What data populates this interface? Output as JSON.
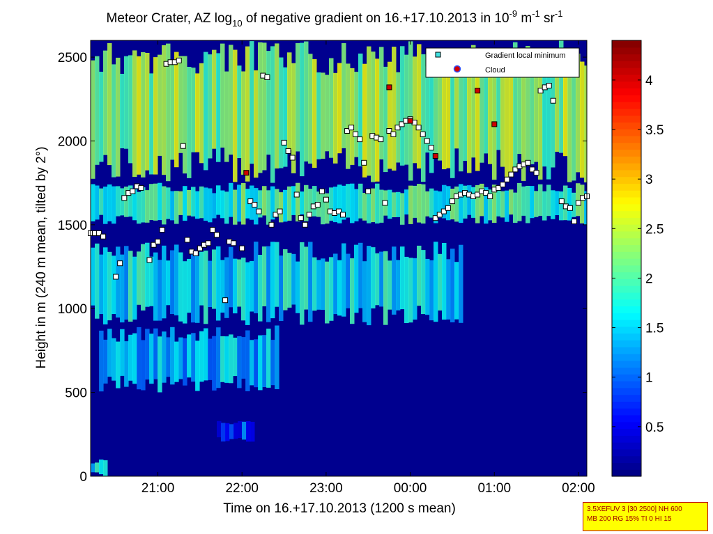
{
  "title": {
    "prefix": "Meteor Crater, AZ log",
    "sub": "10",
    "middle": " of negative gradient on 16.+17.10.2013 in 10",
    "sup1": "-9",
    "unit1": " m",
    "sup2": "-1",
    "unit2": " sr",
    "sup3": "-1"
  },
  "xlabel": "Time on 16.+17.10.2013 (1200 s mean)",
  "ylabel": "Height in m (240 m mean, tilted by 2°)",
  "info_box": [
    "3.5XEFUV 3 [30 2500] NH 600",
    "MB 200 RG 15% TI 0 HI 15"
  ],
  "legend": {
    "placement": "top-right",
    "items": [
      {
        "label": "Gradient local minimum",
        "color": "#40e0e0"
      },
      {
        "label": "Cloud",
        "color": "#d00000"
      }
    ]
  },
  "colors": {
    "background_plot": "#00008f",
    "cloud": "#d00000",
    "minimum_fill": "#ffffff"
  },
  "chart_data": {
    "type": "heatmap",
    "colormap": "jet",
    "x": {
      "min_hours": 20.2,
      "max_hours": 26.1,
      "ticks": [
        {
          "v": 21,
          "label": "21:00"
        },
        {
          "v": 22,
          "label": "22:00"
        },
        {
          "v": 23,
          "label": "23:00"
        },
        {
          "v": 24,
          "label": "00:00"
        },
        {
          "v": 25,
          "label": "01:00"
        },
        {
          "v": 26,
          "label": "02:00"
        }
      ]
    },
    "y": {
      "min": 0,
      "max": 2600,
      "ticks": [
        0,
        500,
        1000,
        1500,
        2000,
        2500
      ]
    },
    "colorbar": {
      "min": 0,
      "max": 4.4,
      "ticks": [
        0.5,
        1,
        1.5,
        2,
        2.5,
        3,
        3.5,
        4
      ]
    },
    "layers": [
      {
        "name": "upper-band",
        "x0": 20.2,
        "x1": 26.1,
        "y0": 1750,
        "y1": 2600,
        "level": 2.3
      },
      {
        "name": "mid-band",
        "x0": 20.2,
        "x1": 26.1,
        "y0": 1500,
        "y1": 1750,
        "level": 1.9
      },
      {
        "name": "lower-band",
        "x0": 20.2,
        "x1": 24.6,
        "y0": 900,
        "y1": 1400,
        "level": 1.6
      },
      {
        "name": "low-patch",
        "x0": 20.3,
        "x1": 22.4,
        "y0": 500,
        "y1": 900,
        "level": 1.4
      },
      {
        "name": "ground-patch",
        "x0": 21.7,
        "x1": 22.1,
        "y0": 200,
        "y1": 330,
        "level": 0.8
      },
      {
        "name": "corner-patch",
        "x0": 20.2,
        "x1": 20.35,
        "y0": 0,
        "y1": 100,
        "level": 1.5
      }
    ],
    "local_minimum": [
      [
        20.2,
        1450
      ],
      [
        20.25,
        1450
      ],
      [
        20.3,
        1450
      ],
      [
        20.35,
        1430
      ],
      [
        20.5,
        1190
      ],
      [
        20.55,
        1270
      ],
      [
        20.6,
        1660
      ],
      [
        20.65,
        1690
      ],
      [
        20.7,
        1700
      ],
      [
        20.75,
        1730
      ],
      [
        20.8,
        1720
      ],
      [
        20.9,
        1290
      ],
      [
        20.95,
        1380
      ],
      [
        21.0,
        1400
      ],
      [
        21.05,
        1470
      ],
      [
        21.1,
        2460
      ],
      [
        21.15,
        2470
      ],
      [
        21.2,
        2470
      ],
      [
        21.25,
        2480
      ],
      [
        21.3,
        1970
      ],
      [
        21.35,
        1410
      ],
      [
        21.4,
        1340
      ],
      [
        21.45,
        1330
      ],
      [
        21.5,
        1360
      ],
      [
        21.55,
        1380
      ],
      [
        21.6,
        1390
      ],
      [
        21.65,
        1470
      ],
      [
        21.7,
        1440
      ],
      [
        21.8,
        1050
      ],
      [
        21.85,
        1400
      ],
      [
        21.9,
        1390
      ],
      [
        22.0,
        1360
      ],
      [
        22.1,
        1640
      ],
      [
        22.15,
        1620
      ],
      [
        22.2,
        1580
      ],
      [
        22.25,
        2390
      ],
      [
        22.3,
        2380
      ],
      [
        22.35,
        1500
      ],
      [
        22.4,
        1560
      ],
      [
        22.45,
        1580
      ],
      [
        22.5,
        1990
      ],
      [
        22.55,
        1940
      ],
      [
        22.6,
        1900
      ],
      [
        22.65,
        1680
      ],
      [
        22.7,
        1540
      ],
      [
        22.75,
        1500
      ],
      [
        22.8,
        1560
      ],
      [
        22.85,
        1610
      ],
      [
        22.9,
        1620
      ],
      [
        22.95,
        1700
      ],
      [
        23.0,
        1650
      ],
      [
        23.05,
        1580
      ],
      [
        23.1,
        1570
      ],
      [
        23.15,
        1580
      ],
      [
        23.2,
        1560
      ],
      [
        23.25,
        2060
      ],
      [
        23.3,
        2080
      ],
      [
        23.35,
        2040
      ],
      [
        23.4,
        2010
      ],
      [
        23.45,
        1870
      ],
      [
        23.5,
        1700
      ],
      [
        23.55,
        2030
      ],
      [
        23.6,
        2020
      ],
      [
        23.65,
        2010
      ],
      [
        23.7,
        1630
      ],
      [
        23.75,
        2060
      ],
      [
        23.8,
        2040
      ],
      [
        23.85,
        2080
      ],
      [
        23.9,
        2100
      ],
      [
        23.95,
        2120
      ],
      [
        24.0,
        2130
      ],
      [
        24.05,
        2110
      ],
      [
        24.1,
        2080
      ],
      [
        24.15,
        2040
      ],
      [
        24.2,
        2000
      ],
      [
        24.25,
        1960
      ],
      [
        24.3,
        1540
      ],
      [
        24.35,
        1560
      ],
      [
        24.4,
        1580
      ],
      [
        24.45,
        1600
      ],
      [
        24.5,
        1640
      ],
      [
        24.55,
        1670
      ],
      [
        24.6,
        1680
      ],
      [
        24.65,
        1690
      ],
      [
        24.7,
        1680
      ],
      [
        24.75,
        1670
      ],
      [
        24.8,
        1680
      ],
      [
        24.85,
        1700
      ],
      [
        24.9,
        1690
      ],
      [
        24.95,
        1670
      ],
      [
        25.0,
        1710
      ],
      [
        25.05,
        1720
      ],
      [
        25.1,
        1740
      ],
      [
        25.15,
        1770
      ],
      [
        25.2,
        1800
      ],
      [
        25.25,
        1830
      ],
      [
        25.3,
        1850
      ],
      [
        25.35,
        1860
      ],
      [
        25.4,
        1870
      ],
      [
        25.45,
        1830
      ],
      [
        25.5,
        1810
      ],
      [
        25.55,
        2300
      ],
      [
        25.6,
        2320
      ],
      [
        25.65,
        2330
      ],
      [
        25.7,
        2240
      ],
      [
        25.8,
        1640
      ],
      [
        25.85,
        1610
      ],
      [
        25.9,
        1600
      ],
      [
        25.95,
        1520
      ],
      [
        26.0,
        1630
      ],
      [
        26.05,
        1660
      ],
      [
        26.1,
        1670
      ]
    ],
    "cloud": [
      [
        22.05,
        1810
      ],
      [
        23.75,
        2320
      ],
      [
        24.0,
        2120
      ],
      [
        24.3,
        1910
      ],
      [
        24.8,
        2300
      ],
      [
        25.0,
        2100
      ]
    ]
  }
}
